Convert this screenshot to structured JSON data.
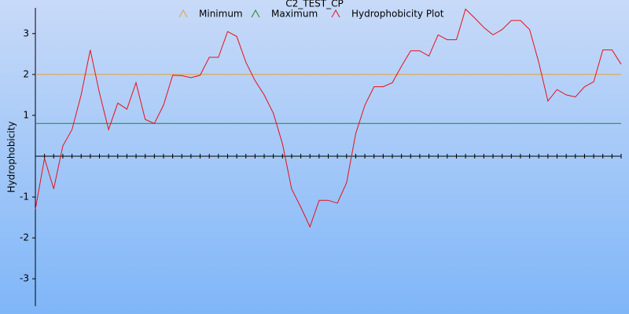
{
  "chart_data": {
    "type": "line",
    "title": "C2_TEST_CP",
    "ylabel": "Hydrophobicity",
    "categories": [
      null,
      null,
      null,
      null,
      null,
      null,
      null,
      null,
      null,
      null,
      null,
      null,
      null,
      null,
      null,
      null,
      null,
      null,
      null,
      null,
      null,
      null,
      null,
      null,
      null,
      null,
      null,
      null,
      null,
      null,
      null,
      null,
      null,
      null,
      null,
      null,
      null,
      null,
      null,
      null,
      null,
      null,
      null,
      null,
      null,
      null,
      null,
      null,
      null,
      null,
      null,
      null,
      null,
      null,
      null,
      null,
      null,
      null,
      null,
      null,
      null,
      null,
      null,
      null,
      null
    ],
    "ylim": [
      -3.67,
      3.63
    ],
    "yticks": [
      -3,
      -2,
      -1,
      1,
      2,
      3
    ],
    "series": [
      {
        "name": "Minimum",
        "color": "#e8a030",
        "values": [
          2,
          2,
          2,
          2,
          2,
          2,
          2,
          2,
          2,
          2,
          2,
          2,
          2,
          2,
          2,
          2,
          2,
          2,
          2,
          2,
          2,
          2,
          2,
          2,
          2,
          2,
          2,
          2,
          2,
          2,
          2,
          2,
          2,
          2,
          2,
          2,
          2,
          2,
          2,
          2,
          2,
          2,
          2,
          2,
          2,
          2,
          2,
          2,
          2,
          2,
          2,
          2,
          2,
          2,
          2,
          2,
          2,
          2,
          2,
          2,
          2,
          2,
          2,
          2,
          2
        ]
      },
      {
        "name": "Maximum",
        "color": "#1a8a1a",
        "values": [
          0.8,
          0.8,
          0.8,
          0.8,
          0.8,
          0.8,
          0.8,
          0.8,
          0.8,
          0.8,
          0.8,
          0.8,
          0.8,
          0.8,
          0.8,
          0.8,
          0.8,
          0.8,
          0.8,
          0.8,
          0.8,
          0.8,
          0.8,
          0.8,
          0.8,
          0.8,
          0.8,
          0.8,
          0.8,
          0.8,
          0.8,
          0.8,
          0.8,
          0.8,
          0.8,
          0.8,
          0.8,
          0.8,
          0.8,
          0.8,
          0.8,
          0.8,
          0.8,
          0.8,
          0.8,
          0.8,
          0.8,
          0.8,
          0.8,
          0.8,
          0.8,
          0.8,
          0.8,
          0.8,
          0.8,
          0.8,
          0.8,
          0.8,
          0.8,
          0.8,
          0.8,
          0.8,
          0.8,
          0.8,
          0.8
        ]
      },
      {
        "name": "Hydrophobicity Plot",
        "color": "#e8101a",
        "values": [
          -1.3,
          -0.05,
          -0.8,
          0.25,
          0.65,
          1.5,
          2.6,
          1.55,
          0.65,
          1.3,
          1.15,
          1.8,
          0.9,
          0.8,
          1.25,
          1.98,
          1.97,
          1.92,
          1.98,
          2.42,
          2.42,
          3.05,
          2.93,
          2.3,
          1.85,
          1.5,
          1.05,
          0.3,
          -0.8,
          -1.25,
          -1.73,
          -1.08,
          -1.08,
          -1.15,
          -0.65,
          0.55,
          1.25,
          1.7,
          1.7,
          1.8,
          2.2,
          2.58,
          2.58,
          2.45,
          2.97,
          2.85,
          2.85,
          3.6,
          3.38,
          3.15,
          2.97,
          3.1,
          3.32,
          3.32,
          3.1,
          2.3,
          1.35,
          1.63,
          1.5,
          1.45,
          1.7,
          1.82,
          2.6,
          2.6,
          2.25
        ]
      }
    ]
  }
}
